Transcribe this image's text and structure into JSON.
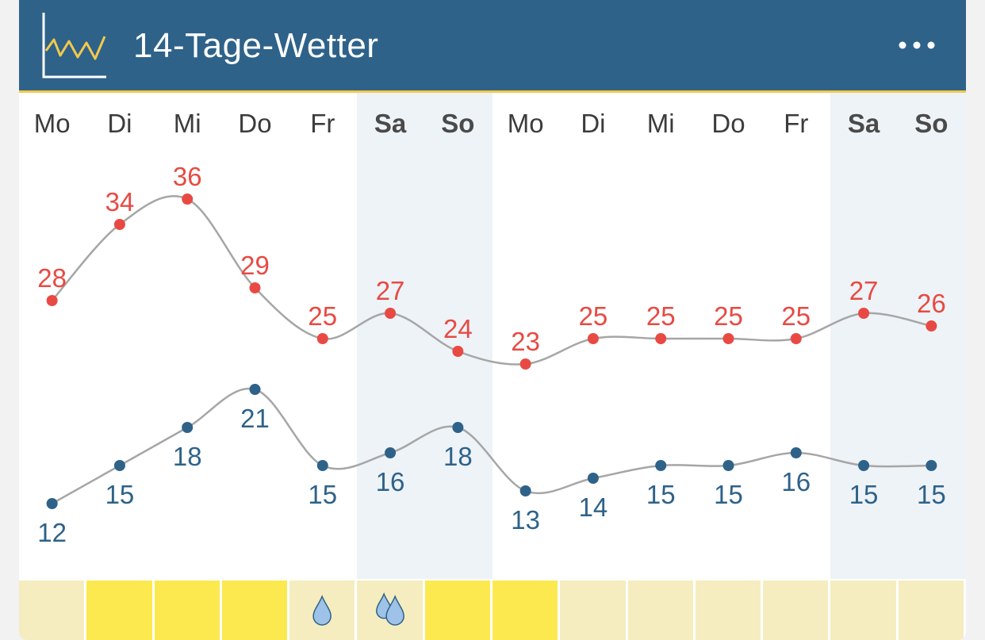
{
  "header": {
    "title": "14-Tage-Wetter",
    "icon": "line-chart-icon",
    "menu_icon": "more-dots-icon"
  },
  "colors": {
    "header_bg": "#2e6289",
    "header_accent": "#f2c94c",
    "max_temp": "#e84a43",
    "min_temp": "#2e6289",
    "line": "#a6a6a6",
    "weekend_bg": "#eef3f8",
    "sunny": "#fbe94f",
    "not_sunny": "#f5edbf",
    "drop_fill": "#9ec2e8",
    "drop_stroke": "#2e6289"
  },
  "chart_data": {
    "type": "line",
    "categories": [
      "Mo",
      "Di",
      "Mi",
      "Do",
      "Fr",
      "Sa",
      "So",
      "Mo",
      "Di",
      "Mi",
      "Do",
      "Fr",
      "Sa",
      "So"
    ],
    "weekend": [
      false,
      false,
      false,
      false,
      false,
      true,
      true,
      false,
      false,
      false,
      false,
      false,
      true,
      true
    ],
    "series": [
      {
        "key": "max",
        "values": [
          28,
          34,
          36,
          29,
          25,
          27,
          24,
          23,
          25,
          25,
          25,
          25,
          27,
          26
        ]
      },
      {
        "key": "min",
        "values": [
          12,
          15,
          18,
          21,
          15,
          16,
          18,
          13,
          14,
          15,
          15,
          16,
          15,
          15
        ]
      }
    ],
    "sun": [
      "none",
      "sunny",
      "sunny",
      "sunny",
      "none",
      "none",
      "sunny",
      "sunny",
      "none",
      "none",
      "none",
      "none",
      "none",
      "none"
    ],
    "rain_drops": [
      0,
      0,
      0,
      0,
      1,
      2,
      0,
      0,
      0,
      0,
      0,
      0,
      0,
      0
    ],
    "grid": false,
    "legend": "none"
  }
}
